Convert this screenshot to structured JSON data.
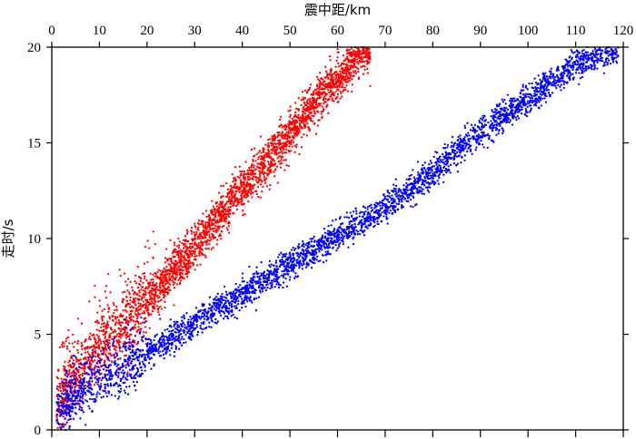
{
  "chart_data": {
    "type": "scatter",
    "title": "",
    "xlabel": "震中距/km",
    "ylabel": "走时/s",
    "xlim": [
      0,
      120
    ],
    "ylim": [
      0,
      20
    ],
    "x_ticks": [
      "0",
      "10",
      "20",
      "30",
      "40",
      "50",
      "60",
      "70",
      "80",
      "90",
      "100",
      "110",
      "120"
    ],
    "y_ticks": [
      "0",
      "5",
      "10",
      "15",
      "20"
    ],
    "x_axis_position": "top",
    "grid": false,
    "legend": "none",
    "series": [
      {
        "color": "#ff0000",
        "marker": "dot",
        "trend": [
          [
            1,
            1.2
          ],
          [
            5,
            2.8
          ],
          [
            10,
            4.3
          ],
          [
            15,
            5.3
          ],
          [
            20,
            6.6
          ],
          [
            25,
            8.2
          ],
          [
            30,
            9.6
          ],
          [
            35,
            11.2
          ],
          [
            40,
            12.6
          ],
          [
            45,
            14.0
          ],
          [
            50,
            15.5
          ],
          [
            55,
            17.0
          ],
          [
            60,
            18.3
          ],
          [
            65,
            19.7
          ],
          [
            67,
            20.0
          ]
        ],
        "n_points": 3200
      },
      {
        "color": "#0000ff",
        "marker": "dot",
        "trend": [
          [
            1,
            0.9
          ],
          [
            5,
            1.8
          ],
          [
            10,
            2.6
          ],
          [
            15,
            3.3
          ],
          [
            20,
            4.0
          ],
          [
            30,
            5.6
          ],
          [
            40,
            7.1
          ],
          [
            50,
            8.6
          ],
          [
            60,
            10.1
          ],
          [
            70,
            11.6
          ],
          [
            80,
            13.5
          ],
          [
            90,
            15.6
          ],
          [
            100,
            17.3
          ],
          [
            110,
            19.1
          ],
          [
            119,
            20.0
          ]
        ],
        "n_points": 3600
      }
    ]
  }
}
